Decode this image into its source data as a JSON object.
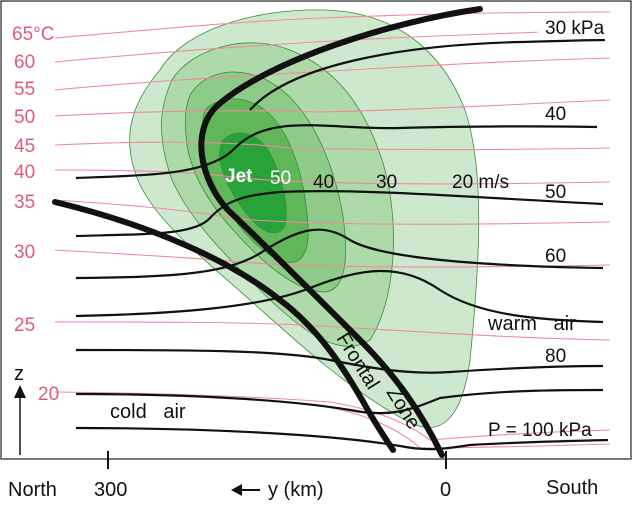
{
  "colors": {
    "theta_lines": "#f08aa0",
    "theta_labels": "#e05a78",
    "isobars": "#111111",
    "front": "#111111",
    "wind_20": "#cde8cc",
    "wind_30": "#aedaa9",
    "wind_40": "#8fcb88",
    "wind_50": "#5fb75a",
    "jet_core": "#28a33a"
  },
  "potential_temperature": {
    "labels": [
      "65°C",
      "60",
      "55",
      "50",
      "45",
      "40",
      "35",
      "30",
      "25",
      "20"
    ]
  },
  "pressure": {
    "labels": [
      "30 kPa",
      "40",
      "50",
      "60",
      "80",
      "P = 100 kPa"
    ]
  },
  "wind": {
    "jet_label": "Jet",
    "labels": [
      "50",
      "40",
      "30",
      "20 m/s"
    ]
  },
  "front": {
    "label_a": "Frontal",
    "label_b": "Zone"
  },
  "regions": {
    "warm": "warm   air",
    "cold": "cold   air"
  },
  "axes": {
    "z_label": "z",
    "north": "North",
    "south": "South",
    "tick_300": "300",
    "tick_0": "0",
    "y_label": "y (km)",
    "y_arrow": "◀—"
  }
}
